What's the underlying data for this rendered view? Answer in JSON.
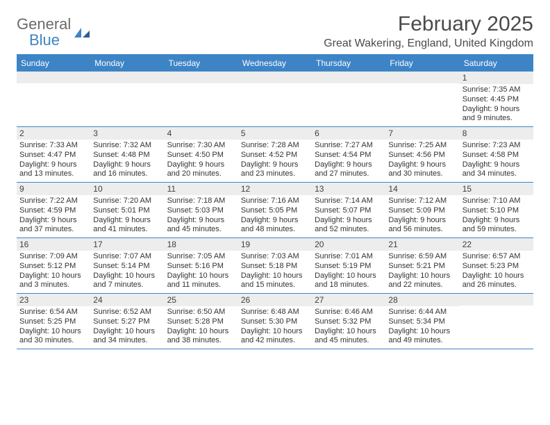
{
  "brand": {
    "word1": "General",
    "word2": "Blue"
  },
  "title": "February 2025",
  "location": "Great Wakering, England, United Kingdom",
  "colors": {
    "accent": "#3d84c6",
    "header_text": "#ffffff",
    "daynum_bg": "#ededed",
    "body_text": "#333333",
    "logo_gray": "#6a6a6a"
  },
  "day_names": [
    "Sunday",
    "Monday",
    "Tuesday",
    "Wednesday",
    "Thursday",
    "Friday",
    "Saturday"
  ],
  "weeks": [
    [
      {
        "n": null
      },
      {
        "n": null
      },
      {
        "n": null
      },
      {
        "n": null
      },
      {
        "n": null
      },
      {
        "n": null
      },
      {
        "n": "1",
        "sr": "Sunrise: 7:35 AM",
        "ss": "Sunset: 4:45 PM",
        "d1": "Daylight: 9 hours",
        "d2": "and 9 minutes."
      }
    ],
    [
      {
        "n": "2",
        "sr": "Sunrise: 7:33 AM",
        "ss": "Sunset: 4:47 PM",
        "d1": "Daylight: 9 hours",
        "d2": "and 13 minutes."
      },
      {
        "n": "3",
        "sr": "Sunrise: 7:32 AM",
        "ss": "Sunset: 4:48 PM",
        "d1": "Daylight: 9 hours",
        "d2": "and 16 minutes."
      },
      {
        "n": "4",
        "sr": "Sunrise: 7:30 AM",
        "ss": "Sunset: 4:50 PM",
        "d1": "Daylight: 9 hours",
        "d2": "and 20 minutes."
      },
      {
        "n": "5",
        "sr": "Sunrise: 7:28 AM",
        "ss": "Sunset: 4:52 PM",
        "d1": "Daylight: 9 hours",
        "d2": "and 23 minutes."
      },
      {
        "n": "6",
        "sr": "Sunrise: 7:27 AM",
        "ss": "Sunset: 4:54 PM",
        "d1": "Daylight: 9 hours",
        "d2": "and 27 minutes."
      },
      {
        "n": "7",
        "sr": "Sunrise: 7:25 AM",
        "ss": "Sunset: 4:56 PM",
        "d1": "Daylight: 9 hours",
        "d2": "and 30 minutes."
      },
      {
        "n": "8",
        "sr": "Sunrise: 7:23 AM",
        "ss": "Sunset: 4:58 PM",
        "d1": "Daylight: 9 hours",
        "d2": "and 34 minutes."
      }
    ],
    [
      {
        "n": "9",
        "sr": "Sunrise: 7:22 AM",
        "ss": "Sunset: 4:59 PM",
        "d1": "Daylight: 9 hours",
        "d2": "and 37 minutes."
      },
      {
        "n": "10",
        "sr": "Sunrise: 7:20 AM",
        "ss": "Sunset: 5:01 PM",
        "d1": "Daylight: 9 hours",
        "d2": "and 41 minutes."
      },
      {
        "n": "11",
        "sr": "Sunrise: 7:18 AM",
        "ss": "Sunset: 5:03 PM",
        "d1": "Daylight: 9 hours",
        "d2": "and 45 minutes."
      },
      {
        "n": "12",
        "sr": "Sunrise: 7:16 AM",
        "ss": "Sunset: 5:05 PM",
        "d1": "Daylight: 9 hours",
        "d2": "and 48 minutes."
      },
      {
        "n": "13",
        "sr": "Sunrise: 7:14 AM",
        "ss": "Sunset: 5:07 PM",
        "d1": "Daylight: 9 hours",
        "d2": "and 52 minutes."
      },
      {
        "n": "14",
        "sr": "Sunrise: 7:12 AM",
        "ss": "Sunset: 5:09 PM",
        "d1": "Daylight: 9 hours",
        "d2": "and 56 minutes."
      },
      {
        "n": "15",
        "sr": "Sunrise: 7:10 AM",
        "ss": "Sunset: 5:10 PM",
        "d1": "Daylight: 9 hours",
        "d2": "and 59 minutes."
      }
    ],
    [
      {
        "n": "16",
        "sr": "Sunrise: 7:09 AM",
        "ss": "Sunset: 5:12 PM",
        "d1": "Daylight: 10 hours",
        "d2": "and 3 minutes."
      },
      {
        "n": "17",
        "sr": "Sunrise: 7:07 AM",
        "ss": "Sunset: 5:14 PM",
        "d1": "Daylight: 10 hours",
        "d2": "and 7 minutes."
      },
      {
        "n": "18",
        "sr": "Sunrise: 7:05 AM",
        "ss": "Sunset: 5:16 PM",
        "d1": "Daylight: 10 hours",
        "d2": "and 11 minutes."
      },
      {
        "n": "19",
        "sr": "Sunrise: 7:03 AM",
        "ss": "Sunset: 5:18 PM",
        "d1": "Daylight: 10 hours",
        "d2": "and 15 minutes."
      },
      {
        "n": "20",
        "sr": "Sunrise: 7:01 AM",
        "ss": "Sunset: 5:19 PM",
        "d1": "Daylight: 10 hours",
        "d2": "and 18 minutes."
      },
      {
        "n": "21",
        "sr": "Sunrise: 6:59 AM",
        "ss": "Sunset: 5:21 PM",
        "d1": "Daylight: 10 hours",
        "d2": "and 22 minutes."
      },
      {
        "n": "22",
        "sr": "Sunrise: 6:57 AM",
        "ss": "Sunset: 5:23 PM",
        "d1": "Daylight: 10 hours",
        "d2": "and 26 minutes."
      }
    ],
    [
      {
        "n": "23",
        "sr": "Sunrise: 6:54 AM",
        "ss": "Sunset: 5:25 PM",
        "d1": "Daylight: 10 hours",
        "d2": "and 30 minutes."
      },
      {
        "n": "24",
        "sr": "Sunrise: 6:52 AM",
        "ss": "Sunset: 5:27 PM",
        "d1": "Daylight: 10 hours",
        "d2": "and 34 minutes."
      },
      {
        "n": "25",
        "sr": "Sunrise: 6:50 AM",
        "ss": "Sunset: 5:28 PM",
        "d1": "Daylight: 10 hours",
        "d2": "and 38 minutes."
      },
      {
        "n": "26",
        "sr": "Sunrise: 6:48 AM",
        "ss": "Sunset: 5:30 PM",
        "d1": "Daylight: 10 hours",
        "d2": "and 42 minutes."
      },
      {
        "n": "27",
        "sr": "Sunrise: 6:46 AM",
        "ss": "Sunset: 5:32 PM",
        "d1": "Daylight: 10 hours",
        "d2": "and 45 minutes."
      },
      {
        "n": "28",
        "sr": "Sunrise: 6:44 AM",
        "ss": "Sunset: 5:34 PM",
        "d1": "Daylight: 10 hours",
        "d2": "and 49 minutes."
      },
      {
        "n": null
      }
    ]
  ]
}
